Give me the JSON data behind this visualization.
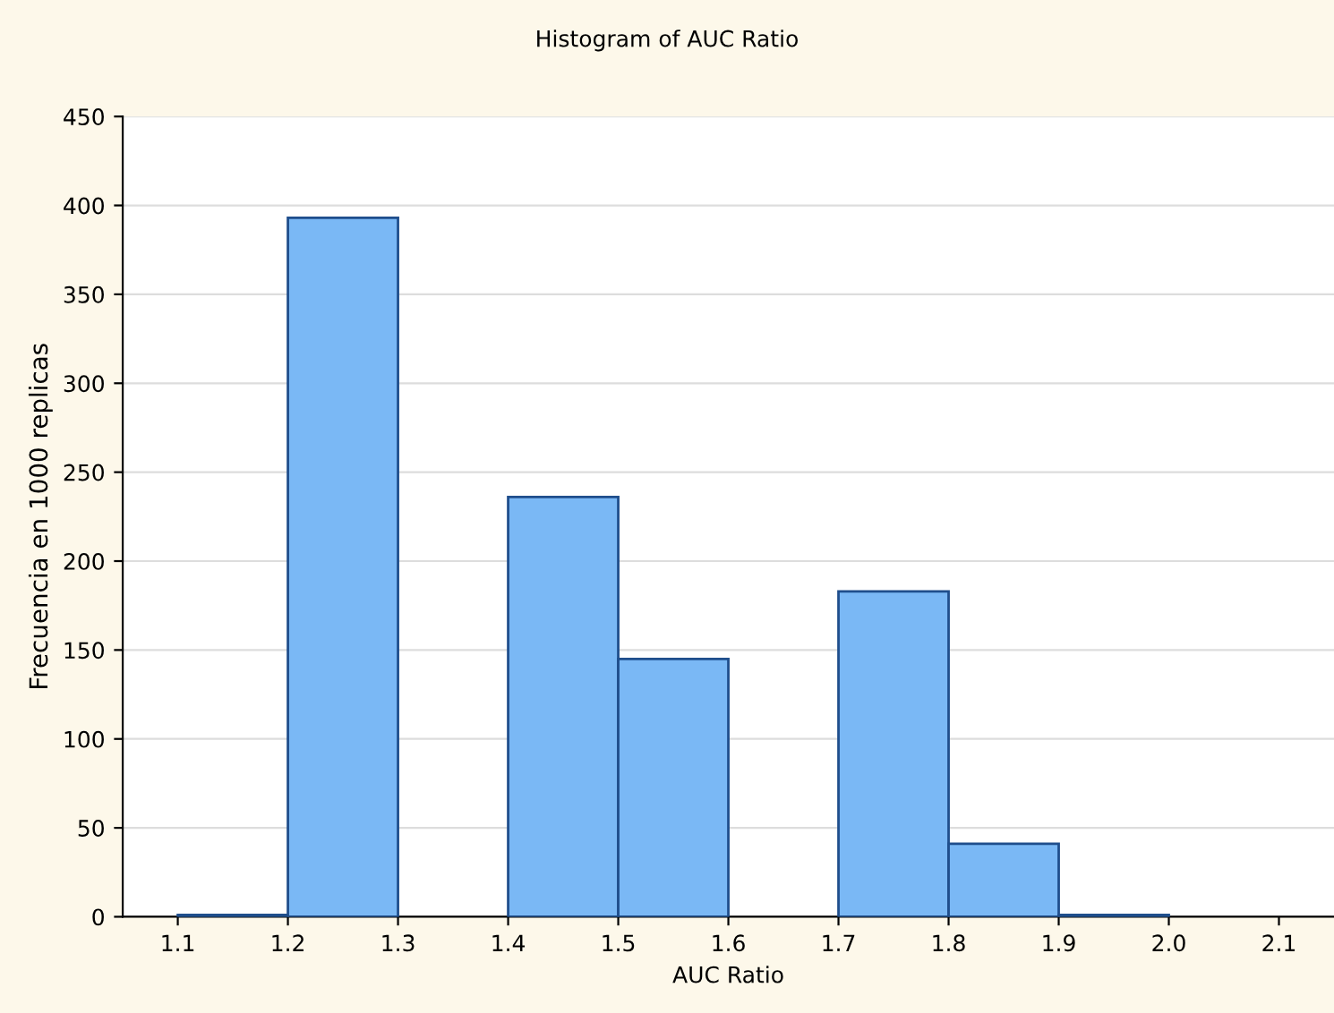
{
  "chart_data": {
    "type": "histogram",
    "title": "Histogram of AUC Ratio",
    "xlabel": "AUC Ratio",
    "ylabel": "Frecuencia en 1000 replicas",
    "bins": [
      1.1,
      1.2,
      1.3,
      1.4,
      1.5,
      1.6,
      1.7,
      1.8,
      1.9,
      2.0,
      2.1
    ],
    "values": [
      1,
      393,
      0,
      236,
      145,
      0,
      183,
      41,
      1,
      0
    ],
    "color": "#7ab8f5",
    "xlim": [
      1.05,
      2.15
    ],
    "xticks": [
      1.1,
      1.2,
      1.3,
      1.4,
      1.5,
      1.6,
      1.7,
      1.8,
      1.9,
      {
        "value": 2.0,
        "label": "2.0"
      },
      2.1
    ],
    "ylim": [
      0,
      450
    ],
    "yticks": [
      0,
      50,
      100,
      150,
      200,
      250,
      300,
      350,
      400,
      450
    ],
    "grid": "y"
  }
}
